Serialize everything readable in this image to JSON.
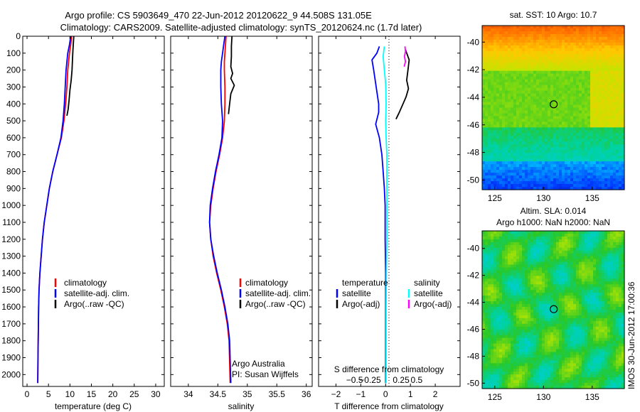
{
  "figure": {
    "title_line1": "Argo profile: CS 5903649_470 22-Jun-2012 20120622_9 44.508S 131.05E",
    "title_line2": "Climatology: CARS2009. Satellite-adjusted climatology: synTS_20120624.nc (1.7d later)",
    "credit_line1": "Argo Australia",
    "credit_line2": "PI: Susan Wijffels",
    "stamp": "IMOS 30-Jun-2012 17:00:36"
  },
  "colors": {
    "climatology": "#ff0000",
    "satellite": "#0000ff",
    "argo": "#000000",
    "sal_satellite": "#00ffff",
    "sal_argo": "#ff00ff"
  },
  "chart_data": [
    {
      "type": "line",
      "id": "temperature",
      "xlabel": "temperature (deg C)",
      "xlim": [
        -1,
        32
      ],
      "ylim": [
        2070,
        0
      ],
      "xticks": [
        0,
        5,
        10,
        15,
        20,
        25,
        30
      ],
      "xtick_labels": [
        "0",
        "5",
        "10",
        "15",
        "20",
        "25",
        "30"
      ],
      "yticks": [
        0,
        100,
        200,
        300,
        400,
        500,
        600,
        700,
        800,
        900,
        1000,
        1100,
        1200,
        1300,
        1400,
        1500,
        1600,
        1700,
        1800,
        1900,
        2000
      ],
      "ytick_labels": [
        "0",
        "100",
        "200",
        "300",
        "400",
        "500",
        "600",
        "700",
        "800",
        "900",
        "1000",
        "1100",
        "1200",
        "1300",
        "1400",
        "1500",
        "1600",
        "1700",
        "1800",
        "1900",
        "2000"
      ],
      "legend": [
        "climatology",
        "satellite-adj. clim.",
        "Argo(..raw -QC)"
      ],
      "series": [
        {
          "name": "climatology",
          "color": "#ff0000",
          "x": [
            10.4,
            10.2,
            9.9,
            9.7,
            9.5,
            9.3,
            9.0,
            8.6,
            8.0,
            7.0,
            6.0,
            5.2,
            4.6,
            4.0,
            3.6,
            3.3,
            3.0,
            2.8,
            2.7,
            2.6,
            2.55,
            2.5
          ],
          "y": [
            0,
            50,
            100,
            150,
            200,
            300,
            400,
            500,
            600,
            700,
            800,
            900,
            1000,
            1100,
            1200,
            1300,
            1400,
            1500,
            1600,
            1800,
            1900,
            2050
          ]
        },
        {
          "name": "satellite-adj. clim.",
          "color": "#0000ff",
          "x": [
            10.2,
            9.9,
            9.5,
            9.3,
            9.1,
            8.9,
            8.7,
            8.4,
            7.9,
            7.0,
            6.0,
            5.2,
            4.6,
            4.0,
            3.6,
            3.3,
            3.0,
            2.8,
            2.7,
            2.6,
            2.55,
            2.5
          ],
          "y": [
            0,
            50,
            100,
            150,
            200,
            300,
            400,
            500,
            600,
            700,
            800,
            900,
            1000,
            1100,
            1200,
            1300,
            1400,
            1500,
            1600,
            1800,
            1900,
            2050
          ]
        },
        {
          "name": "Argo(..raw -QC)",
          "color": "#000000",
          "x": [
            10.9,
            10.8,
            10.7,
            10.6,
            10.5,
            10.3,
            10.0,
            9.8,
            9.6,
            9.3
          ],
          "y": [
            0,
            40,
            80,
            130,
            200,
            260,
            320,
            380,
            430,
            470
          ]
        }
      ]
    },
    {
      "type": "line",
      "id": "salinity",
      "xlabel": "salinity",
      "xlim": [
        33.7,
        36.1
      ],
      "ylim": [
        2070,
        0
      ],
      "xticks": [
        34,
        34.5,
        35,
        35.5,
        36
      ],
      "xtick_labels": [
        "34",
        "34.5",
        "35",
        "35.5",
        "36"
      ],
      "legend": [
        "climatology",
        "satellite-adj. clim.",
        "Argo(..raw -QC)"
      ],
      "series": [
        {
          "name": "climatology",
          "color": "#ff0000",
          "x": [
            34.64,
            34.63,
            34.62,
            34.61,
            34.61,
            34.62,
            34.62,
            34.61,
            34.58,
            34.53,
            34.47,
            34.42,
            34.38,
            34.36,
            34.38,
            34.42,
            34.48,
            34.55,
            34.61,
            34.66,
            34.69,
            34.71
          ],
          "y": [
            0,
            50,
            100,
            150,
            200,
            300,
            400,
            500,
            600,
            700,
            800,
            900,
            1000,
            1100,
            1200,
            1300,
            1400,
            1500,
            1600,
            1700,
            1800,
            2050
          ]
        },
        {
          "name": "satellite-adj. clim.",
          "color": "#0000ff",
          "x": [
            34.62,
            34.6,
            34.58,
            34.56,
            34.55,
            34.55,
            34.56,
            34.58,
            34.57,
            34.52,
            34.46,
            34.41,
            34.37,
            34.36,
            34.38,
            34.43,
            34.49,
            34.56,
            34.62,
            34.67,
            34.7,
            34.72
          ],
          "y": [
            0,
            50,
            100,
            150,
            200,
            300,
            400,
            500,
            600,
            700,
            800,
            900,
            1000,
            1100,
            1200,
            1300,
            1400,
            1500,
            1600,
            1700,
            1800,
            2050
          ]
        },
        {
          "name": "Argo(..raw -QC)",
          "color": "#000000",
          "x": [
            34.74,
            34.73,
            34.73,
            34.72,
            34.75,
            34.72,
            34.78,
            34.72,
            34.7,
            34.68
          ],
          "y": [
            0,
            60,
            120,
            180,
            220,
            250,
            290,
            340,
            400,
            460
          ]
        }
      ]
    },
    {
      "type": "line",
      "id": "difference",
      "xlabel": "T difference from climatology",
      "xlabel_top": "S difference from climatology",
      "xlim": [
        -2.7,
        3.0
      ],
      "ylim": [
        2070,
        0
      ],
      "xticks": [
        -2,
        -1,
        0,
        1,
        2
      ],
      "xtick_labels": [
        "−2",
        "−1",
        "0",
        "1",
        "2"
      ],
      "xticks_top": [
        -1.25,
        -0.625,
        0.625,
        1.25
      ],
      "xtick_top_labels": [
        "−0.5",
        "−0.25",
        "0.25",
        "0.5"
      ],
      "legend_temperature": {
        "title": "temperature",
        "items": [
          "satellite",
          "Argo(-adj)"
        ]
      },
      "legend_salinity": {
        "title": "salinity",
        "items": [
          "satellite",
          "Argo(-adj)"
        ]
      },
      "series": [
        {
          "name": "satellite",
          "color": "#0000ff",
          "x": [
            -0.25,
            -0.35,
            -0.55,
            -0.48,
            -0.38,
            -0.28,
            -0.28,
            -0.4,
            -0.25,
            -0.15,
            -0.1,
            -0.05,
            -0.02,
            -0.02,
            0.0,
            0.0,
            0.0,
            0.0,
            0.0
          ],
          "y": [
            60,
            100,
            140,
            200,
            300,
            400,
            450,
            520,
            600,
            700,
            800,
            900,
            1000,
            1200,
            1400,
            1600,
            1800,
            1900,
            2050
          ]
        },
        {
          "name": "Argo(-adj)",
          "color": "#000000",
          "x": [
            0.8,
            0.95,
            0.9,
            0.85,
            0.92,
            0.82,
            0.7,
            0.55,
            0.42
          ],
          "y": [
            80,
            140,
            200,
            260,
            310,
            360,
            400,
            450,
            490
          ]
        },
        {
          "name": "satellite",
          "color": "#00ffff",
          "x": [
            -0.05,
            -0.1,
            -0.05,
            0.0,
            0.02,
            0.0,
            0.02,
            0.05,
            0.05,
            0.05,
            0.05,
            0.03,
            0.02,
            0.02,
            0.02
          ],
          "y": [
            60,
            120,
            200,
            280,
            400,
            500,
            600,
            700,
            800,
            1000,
            1200,
            1400,
            1600,
            1800,
            2050
          ]
        },
        {
          "name": "Argo(-adj)",
          "color": "#ff00ff",
          "x": [
            0.78,
            0.8,
            0.76,
            0.8,
            0.75
          ],
          "y": [
            60,
            90,
            120,
            150,
            180
          ]
        }
      ]
    },
    {
      "type": "heatmap",
      "id": "sst_map",
      "title": "sat. SST: 10 Argo: 10.7",
      "xlim": [
        123.7,
        138.3
      ],
      "ylim": [
        -50.7,
        -38.8
      ],
      "xticks": [
        125,
        130,
        135
      ],
      "xtick_labels": [
        "125",
        "130",
        "135"
      ],
      "yticks": [
        -40,
        -42,
        -44,
        -46,
        -48,
        -50
      ],
      "ytick_labels": [
        "-40",
        "-42",
        "-44",
        "-46",
        "-48",
        "-50"
      ],
      "marker": {
        "lon": 131.05,
        "lat": -44.508
      }
    },
    {
      "type": "heatmap",
      "id": "sla_map",
      "title": "Altim. SLA: 0.014",
      "subtitle": "Argo h1000: NaN h2000: NaN",
      "xlim": [
        123.7,
        138.3
      ],
      "ylim": [
        -50.4,
        -38.7
      ],
      "xticks": [
        125,
        130,
        135
      ],
      "xtick_labels": [
        "125",
        "130",
        "135"
      ],
      "yticks": [
        -40,
        -42,
        -44,
        -46,
        -48,
        -50
      ],
      "ytick_labels": [
        "-40",
        "-42",
        "-44",
        "-46",
        "-48",
        "-50"
      ],
      "marker": {
        "lon": 131.05,
        "lat": -44.508
      }
    }
  ]
}
